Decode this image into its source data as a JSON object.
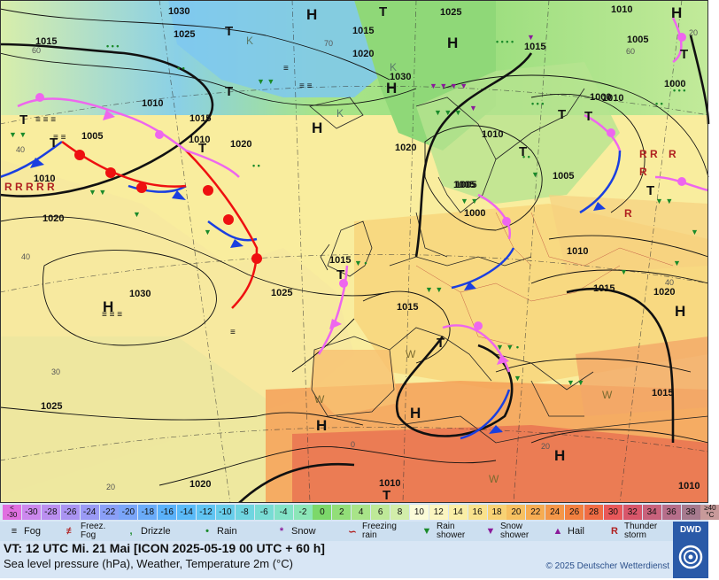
{
  "map": {
    "pressure_labels": [
      {
        "text": "1030"
      },
      {
        "text": "1025"
      },
      {
        "text": "1015"
      },
      {
        "text": "1010"
      },
      {
        "text": "1005"
      },
      {
        "text": "1015"
      },
      {
        "text": "1010"
      },
      {
        "text": "1020"
      },
      {
        "text": "1010"
      },
      {
        "text": "1005"
      },
      {
        "text": "1010"
      },
      {
        "text": "1020"
      },
      {
        "text": "1030"
      },
      {
        "text": "1025"
      },
      {
        "text": "1015"
      },
      {
        "text": "1025"
      },
      {
        "text": "1015"
      },
      {
        "text": "1010"
      },
      {
        "text": "1020"
      },
      {
        "text": "1025"
      },
      {
        "text": "1015"
      },
      {
        "text": "1020"
      },
      {
        "text": "1030"
      },
      {
        "text": "1020"
      },
      {
        "text": "1010"
      },
      {
        "text": "1000"
      },
      {
        "text": "1005"
      },
      {
        "text": "1005"
      },
      {
        "text": "1010"
      },
      {
        "text": "1005"
      },
      {
        "text": "1000"
      },
      {
        "text": "1010"
      },
      {
        "text": "1015"
      },
      {
        "text": "1020"
      },
      {
        "text": "1015"
      },
      {
        "text": "1015"
      },
      {
        "text": "1010"
      },
      {
        "text": "1000"
      }
    ],
    "highs": [
      "H",
      "H",
      "H",
      "H",
      "H",
      "H",
      "H",
      "H",
      "H",
      "H"
    ],
    "lows": [
      "T",
      "T",
      "T",
      "T",
      "T",
      "T",
      "T",
      "T",
      "T",
      "T",
      "T",
      "T",
      "T",
      "T"
    ],
    "warm_marks": [
      "W",
      "W",
      "W",
      "W"
    ],
    "cold_marks": [
      "K",
      "K",
      "K"
    ],
    "iso_labels": [
      "60",
      "40",
      "30",
      "20",
      "0",
      "40",
      "60",
      "70",
      "20",
      "40",
      "20"
    ]
  },
  "temperature_scale": {
    "items": [
      {
        "label": "<\n-30",
        "color": "#e06fe0"
      },
      {
        "label": "-30",
        "color": "#cc88ee"
      },
      {
        "label": "-28",
        "color": "#bb8ff0"
      },
      {
        "label": "-26",
        "color": "#aa94f2"
      },
      {
        "label": "-24",
        "color": "#9a9af5"
      },
      {
        "label": "-22",
        "color": "#8a9ff7"
      },
      {
        "label": "-20",
        "color": "#7aa5f8"
      },
      {
        "label": "-18",
        "color": "#6aabf9"
      },
      {
        "label": "-16",
        "color": "#5ab1fa"
      },
      {
        "label": "-14",
        "color": "#5abaf8"
      },
      {
        "label": "-12",
        "color": "#60c4f2"
      },
      {
        "label": "-10",
        "color": "#68cdea"
      },
      {
        "label": "-8",
        "color": "#6fd5e0"
      },
      {
        "label": "-6",
        "color": "#78dcd4"
      },
      {
        "label": "-4",
        "color": "#82e2c6"
      },
      {
        "label": "-2",
        "color": "#8ce6b8"
      },
      {
        "label": "0",
        "color": "#7cd86a"
      },
      {
        "label": "2",
        "color": "#92de78"
      },
      {
        "label": "4",
        "color": "#a8e488"
      },
      {
        "label": "6",
        "color": "#bee998"
      },
      {
        "label": "8",
        "color": "#d2eeaa"
      },
      {
        "label": "10",
        "color": "#fbfbd8"
      },
      {
        "label": "12",
        "color": "#fbf5c0"
      },
      {
        "label": "14",
        "color": "#faeea6"
      },
      {
        "label": "16",
        "color": "#f9e28c"
      },
      {
        "label": "18",
        "color": "#f8d274"
      },
      {
        "label": "20",
        "color": "#f7c060"
      },
      {
        "label": "22",
        "color": "#f6ac52"
      },
      {
        "label": "24",
        "color": "#f49648"
      },
      {
        "label": "26",
        "color": "#f28040"
      },
      {
        "label": "28",
        "color": "#f06c44"
      },
      {
        "label": "30",
        "color": "#e8585a"
      },
      {
        "label": "32",
        "color": "#d8566a"
      },
      {
        "label": "34",
        "color": "#c8627c"
      },
      {
        "label": "36",
        "color": "#b66e8a"
      },
      {
        "label": "38",
        "color": "#a67a8e"
      },
      {
        "label": "≥40\n°C",
        "color": "#c89a9a"
      }
    ]
  },
  "weather_key": [
    {
      "icon": "fog-icon",
      "label": "Fog"
    },
    {
      "icon": "freezing-fog-icon",
      "label": "Freez. Fog"
    },
    {
      "icon": "drizzle-icon",
      "label": "Drizzle"
    },
    {
      "icon": "rain-icon",
      "label": "Rain"
    },
    {
      "icon": "snow-icon",
      "label": "Snow"
    },
    {
      "icon": "freezing-rain-icon",
      "label": "Freezing rain"
    },
    {
      "icon": "rain-shower-icon",
      "label": "Rain shower"
    },
    {
      "icon": "snow-shower-icon",
      "label": "Snow shower"
    },
    {
      "icon": "hail-icon",
      "label": "Hail"
    },
    {
      "icon": "thunderstorm-icon",
      "label": "Thunder storm"
    }
  ],
  "info": {
    "valid_time": "VT: 12 UTC Mi.  21 Mai [ICON 2025-05-19  00 UTC + 60 h]",
    "subtitle": "Sea level pressure (hPa), Weather, Temperature 2m (°C)",
    "copyright": "© 2025 Deutscher Wetterdienst",
    "logo_text": "DWD"
  },
  "colors": {
    "cold_front": "#1a3fe0",
    "warm_front": "#ee1010",
    "occluded_front": "#ee66ee",
    "isobar": "#111111"
  }
}
